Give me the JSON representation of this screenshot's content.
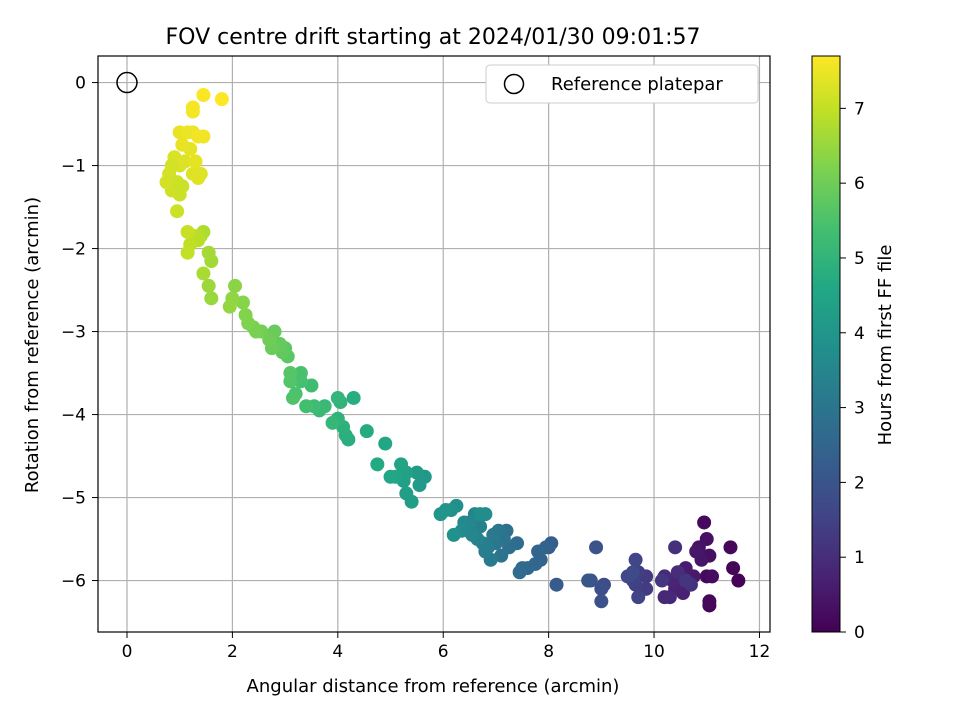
{
  "chart_data": {
    "type": "scatter",
    "title": "FOV centre drift starting at 2024/01/30 09:01:57",
    "xlabel": "Angular distance from reference (arcmin)",
    "ylabel": "Rotation from reference (arcmin)",
    "xlim": [
      -0.55,
      12.2
    ],
    "ylim": [
      -6.62,
      0.32
    ],
    "xticks": [
      0,
      2,
      4,
      6,
      8,
      10,
      12
    ],
    "yticks": [
      0,
      -1,
      -2,
      -3,
      -4,
      -5,
      -6
    ],
    "grid": true,
    "legend": {
      "position": "top-right",
      "entries": [
        "Reference platepar"
      ]
    },
    "reference_point": {
      "x": 0,
      "y": 0
    },
    "colorbar": {
      "label": "Hours from first FF file",
      "range": [
        0,
        7.7
      ],
      "ticks": [
        0,
        1,
        2,
        3,
        4,
        5,
        6,
        7
      ],
      "colormap": "viridis"
    },
    "points": [
      [
        11.6,
        -6.0,
        0.05
      ],
      [
        11.5,
        -5.85,
        0.1
      ],
      [
        11.45,
        -5.6,
        0.15
      ],
      [
        11.05,
        -6.3,
        0.1
      ],
      [
        11.05,
        -6.25,
        0.15
      ],
      [
        11.0,
        -5.95,
        0.2
      ],
      [
        11.1,
        -5.95,
        0.25
      ],
      [
        11.05,
        -5.7,
        0.3
      ],
      [
        10.95,
        -5.3,
        0.2
      ],
      [
        11.0,
        -5.5,
        0.35
      ],
      [
        10.85,
        -5.6,
        0.4
      ],
      [
        10.9,
        -5.75,
        0.45
      ],
      [
        10.8,
        -5.65,
        0.5
      ],
      [
        10.75,
        -5.95,
        0.55
      ],
      [
        10.6,
        -5.85,
        0.6
      ],
      [
        10.5,
        -6.05,
        0.65
      ],
      [
        10.55,
        -6.15,
        0.7
      ],
      [
        10.4,
        -6.1,
        0.75
      ],
      [
        10.35,
        -6.0,
        0.8
      ],
      [
        10.3,
        -6.2,
        0.85
      ],
      [
        10.2,
        -6.2,
        0.9
      ],
      [
        10.2,
        -5.95,
        0.95
      ],
      [
        10.45,
        -5.9,
        1.0
      ],
      [
        10.4,
        -5.6,
        1.05
      ],
      [
        10.7,
        -6.05,
        1.1
      ],
      [
        10.6,
        -6.0,
        1.15
      ],
      [
        10.15,
        -6.0,
        1.2
      ],
      [
        9.85,
        -5.95,
        1.3
      ],
      [
        9.85,
        -6.1,
        1.35
      ],
      [
        9.7,
        -5.9,
        1.4
      ],
      [
        9.65,
        -6.05,
        1.45
      ],
      [
        9.6,
        -6.0,
        1.5
      ],
      [
        9.7,
        -6.2,
        1.55
      ],
      [
        9.65,
        -5.75,
        1.6
      ],
      [
        9.5,
        -5.95,
        1.65
      ],
      [
        9.6,
        -5.9,
        1.7
      ],
      [
        9.05,
        -6.05,
        1.8
      ],
      [
        9.0,
        -6.1,
        1.85
      ],
      [
        9.0,
        -6.25,
        1.9
      ],
      [
        8.9,
        -5.6,
        1.95
      ],
      [
        8.8,
        -6.0,
        2.0
      ],
      [
        8.75,
        -6.0,
        2.05
      ],
      [
        8.15,
        -6.05,
        2.2
      ],
      [
        8.05,
        -5.55,
        2.3
      ],
      [
        8.0,
        -5.6,
        2.35
      ],
      [
        7.95,
        -5.6,
        2.4
      ],
      [
        7.85,
        -5.75,
        2.45
      ],
      [
        7.8,
        -5.65,
        2.5
      ],
      [
        7.75,
        -5.8,
        2.55
      ],
      [
        7.6,
        -5.85,
        2.6
      ],
      [
        7.5,
        -5.85,
        2.65
      ],
      [
        7.45,
        -5.9,
        2.7
      ],
      [
        7.4,
        -5.55,
        2.75
      ],
      [
        7.25,
        -5.6,
        2.8
      ],
      [
        7.2,
        -5.4,
        2.85
      ],
      [
        7.15,
        -5.5,
        2.9
      ],
      [
        7.1,
        -5.7,
        2.95
      ],
      [
        7.05,
        -5.4,
        3.0
      ],
      [
        7.0,
        -5.55,
        3.05
      ],
      [
        6.95,
        -5.45,
        3.1
      ],
      [
        6.9,
        -5.75,
        3.15
      ],
      [
        6.85,
        -5.6,
        3.2
      ],
      [
        6.8,
        -5.65,
        3.25
      ],
      [
        6.75,
        -5.55,
        3.3
      ],
      [
        6.7,
        -5.35,
        3.35
      ],
      [
        6.65,
        -5.5,
        3.4
      ],
      [
        6.6,
        -5.2,
        3.45
      ],
      [
        6.55,
        -5.45,
        3.5
      ],
      [
        6.5,
        -5.3,
        3.55
      ],
      [
        6.4,
        -5.3,
        3.6
      ],
      [
        6.35,
        -5.4,
        3.65
      ],
      [
        6.8,
        -5.2,
        3.7
      ],
      [
        6.7,
        -5.2,
        3.75
      ],
      [
        6.25,
        -5.1,
        3.8
      ],
      [
        6.2,
        -5.45,
        3.85
      ],
      [
        6.15,
        -5.15,
        3.9
      ],
      [
        6.05,
        -5.15,
        3.95
      ],
      [
        5.95,
        -5.2,
        4.0
      ],
      [
        5.65,
        -4.75,
        4.1
      ],
      [
        5.55,
        -4.85,
        4.15
      ],
      [
        5.5,
        -4.7,
        4.2
      ],
      [
        5.4,
        -5.05,
        4.25
      ],
      [
        5.3,
        -4.95,
        4.3
      ],
      [
        5.25,
        -4.8,
        4.35
      ],
      [
        5.3,
        -4.7,
        4.4
      ],
      [
        5.2,
        -4.6,
        4.45
      ],
      [
        5.1,
        -4.75,
        4.5
      ],
      [
        5.0,
        -4.75,
        4.55
      ],
      [
        4.9,
        -4.35,
        4.6
      ],
      [
        4.75,
        -4.6,
        4.65
      ],
      [
        4.55,
        -4.2,
        4.7
      ],
      [
        4.3,
        -3.8,
        4.75
      ],
      [
        4.2,
        -4.3,
        4.8
      ],
      [
        4.15,
        -4.25,
        4.85
      ],
      [
        4.1,
        -4.15,
        4.9
      ],
      [
        4.0,
        -4.05,
        4.95
      ],
      [
        4.05,
        -3.85,
        5.0
      ],
      [
        4.0,
        -3.8,
        5.05
      ],
      [
        3.9,
        -4.1,
        5.1
      ],
      [
        3.75,
        -3.9,
        5.15
      ],
      [
        3.65,
        -3.95,
        5.2
      ],
      [
        3.55,
        -3.9,
        5.25
      ],
      [
        3.5,
        -3.65,
        5.3
      ],
      [
        3.4,
        -3.9,
        5.35
      ],
      [
        3.3,
        -3.6,
        5.4
      ],
      [
        3.3,
        -3.5,
        5.45
      ],
      [
        3.2,
        -3.75,
        5.5
      ],
      [
        3.15,
        -3.8,
        5.55
      ],
      [
        3.1,
        -3.6,
        5.6
      ],
      [
        3.1,
        -3.5,
        5.65
      ],
      [
        3.05,
        -3.3,
        5.7
      ],
      [
        3.0,
        -3.2,
        5.75
      ],
      [
        2.95,
        -3.25,
        5.8
      ],
      [
        2.9,
        -3.15,
        5.85
      ],
      [
        2.8,
        -3.0,
        5.9
      ],
      [
        2.75,
        -3.2,
        5.95
      ],
      [
        2.7,
        -3.1,
        6.0
      ],
      [
        2.55,
        -3.0,
        6.05
      ],
      [
        2.45,
        -3.0,
        6.1
      ],
      [
        2.4,
        -2.95,
        6.15
      ],
      [
        2.3,
        -2.9,
        6.2
      ],
      [
        2.25,
        -2.8,
        6.25
      ],
      [
        2.2,
        -2.65,
        6.3
      ],
      [
        2.05,
        -2.45,
        6.35
      ],
      [
        2.0,
        -2.6,
        6.4
      ],
      [
        1.95,
        -2.7,
        6.45
      ],
      [
        1.6,
        -2.6,
        6.5
      ],
      [
        1.55,
        -2.45,
        6.55
      ],
      [
        1.6,
        -2.15,
        6.6
      ],
      [
        1.55,
        -2.05,
        6.65
      ],
      [
        1.45,
        -2.3,
        6.7
      ],
      [
        1.45,
        -1.8,
        6.75
      ],
      [
        1.4,
        -1.85,
        6.8
      ],
      [
        1.35,
        -1.9,
        6.85
      ],
      [
        1.3,
        -1.85,
        6.9
      ],
      [
        1.2,
        -1.95,
        6.95
      ],
      [
        1.15,
        -2.05,
        7.0
      ],
      [
        1.15,
        -1.8,
        7.05
      ],
      [
        1.0,
        -1.35,
        7.1
      ],
      [
        0.95,
        -1.55,
        7.1
      ],
      [
        0.85,
        -1.3,
        7.15
      ],
      [
        0.8,
        -1.1,
        7.2
      ],
      [
        0.75,
        -1.2,
        7.2
      ],
      [
        0.9,
        -0.9,
        7.25
      ],
      [
        1.0,
        -1.0,
        7.25
      ],
      [
        1.1,
        -0.95,
        7.3
      ],
      [
        1.25,
        -1.1,
        7.3
      ],
      [
        1.35,
        -1.15,
        7.35
      ],
      [
        1.4,
        -1.1,
        7.35
      ],
      [
        1.3,
        -0.95,
        7.4
      ],
      [
        1.2,
        -0.8,
        7.4
      ],
      [
        1.05,
        -0.75,
        7.45
      ],
      [
        1.0,
        -0.6,
        7.45
      ],
      [
        1.15,
        -0.6,
        7.5
      ],
      [
        1.25,
        -0.6,
        7.5
      ],
      [
        1.35,
        -0.65,
        7.55
      ],
      [
        1.45,
        -0.65,
        7.55
      ],
      [
        1.25,
        -0.35,
        7.6
      ],
      [
        1.25,
        -0.3,
        7.6
      ],
      [
        1.45,
        -0.15,
        7.65
      ],
      [
        1.8,
        -0.2,
        7.7
      ],
      [
        0.85,
        -1.0,
        7.2
      ],
      [
        0.95,
        -1.2,
        7.15
      ],
      [
        1.05,
        -1.25,
        7.1
      ]
    ]
  }
}
